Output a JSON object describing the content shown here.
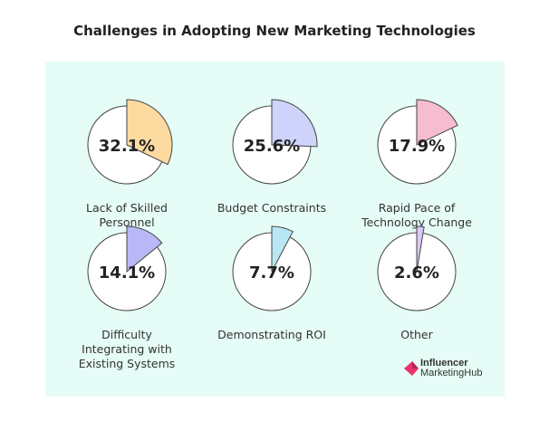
{
  "chart_data": {
    "type": "pie",
    "title": "Challenges in Adopting New Marketing Technologies",
    "items": [
      {
        "label": "Lack of Skilled\nPersonnel",
        "value": 32.1,
        "display": "32.1%",
        "color": "#fddba0"
      },
      {
        "label": "Budget Constraints",
        "value": 25.6,
        "display": "25.6%",
        "color": "#cdd3fb"
      },
      {
        "label": "Rapid Pace of\nTechnology Change",
        "value": 17.9,
        "display": "17.9%",
        "color": "#f6bccf"
      },
      {
        "label": "Difficulty\nIntegrating with\nExisting Systems",
        "value": 14.1,
        "display": "14.1%",
        "color": "#b9b8f6"
      },
      {
        "label": "Demonstrating ROI",
        "value": 7.7,
        "display": "7.7%",
        "color": "#b8e6f5"
      },
      {
        "label": "Other",
        "value": 2.6,
        "display": "2.6%",
        "color": "#dac9f7"
      }
    ]
  },
  "logo": {
    "line1": "Influencer",
    "line2": "MarketingHub",
    "color": "#e8336b"
  }
}
